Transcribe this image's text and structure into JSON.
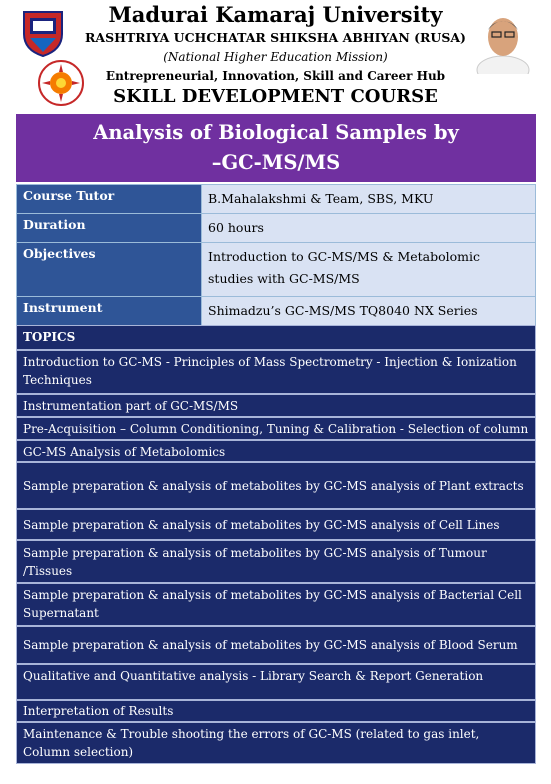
{
  "header": {
    "university": "Madurai Kamaraj University",
    "rusa": "RASHTRIYA UCHCHATAR SHIKSHA ABHIYAN (RUSA)",
    "mission": "(National Higher Education Mission)",
    "hub": "Entrepreneurial, Innovation, Skill and Career Hub",
    "course_type": "SKILL DEVELOPMENT COURSE"
  },
  "title": {
    "line1": "Analysis of Biological Samples by",
    "line2": "–GC-MS/MS"
  },
  "info": [
    {
      "label": "Course Tutor",
      "value": "B.Mahalakshmi & Team, SBS, MKU"
    },
    {
      "label": "Duration",
      "value": "60 hours"
    },
    {
      "label": "Objectives",
      "value": "Introduction to GC-MS/MS & Metabolomic studies with GC-MS/MS"
    },
    {
      "label": "Instrument",
      "value": "Shimadzu’s GC-MS/MS TQ8040 NX Series"
    }
  ],
  "topics_header": "TOPICS",
  "topics": [
    "Introduction to GC-MS - Principles of Mass Spectrometry - Injection & Ionization Techniques",
    "Instrumentation part of GC-MS/MS",
    "Pre-Acquisition – Column Conditioning, Tuning & Calibration - Selection of column",
    "GC-MS Analysis of Metabolomics",
    "Sample preparation & analysis of metabolites by GC-MS analysis of  Plant extracts",
    "Sample preparation & analysis of metabolites by GC-MS analysis of  Cell Lines",
    "Sample preparation & analysis of metabolites by GC-MS analysis of  Tumour /Tissues",
    "Sample preparation & analysis of metabolites by GC-MS analysis of  Bacterial Cell Supernatant",
    "Sample preparation & analysis of metabolites by GC-MS analysis of  Blood Serum",
    "Qualitative and Quantitative analysis - Library Search & Report Generation",
    "Interpretation of Results",
    "Maintenance & Trouble shooting the errors of GC-MS (related to gas inlet, Column selection)"
  ],
  "colors": {
    "title_band": "#7030a0",
    "label_cell": "#2f5597",
    "value_cell": "#d9e2f3",
    "topic_row": "#1b2a6a"
  }
}
